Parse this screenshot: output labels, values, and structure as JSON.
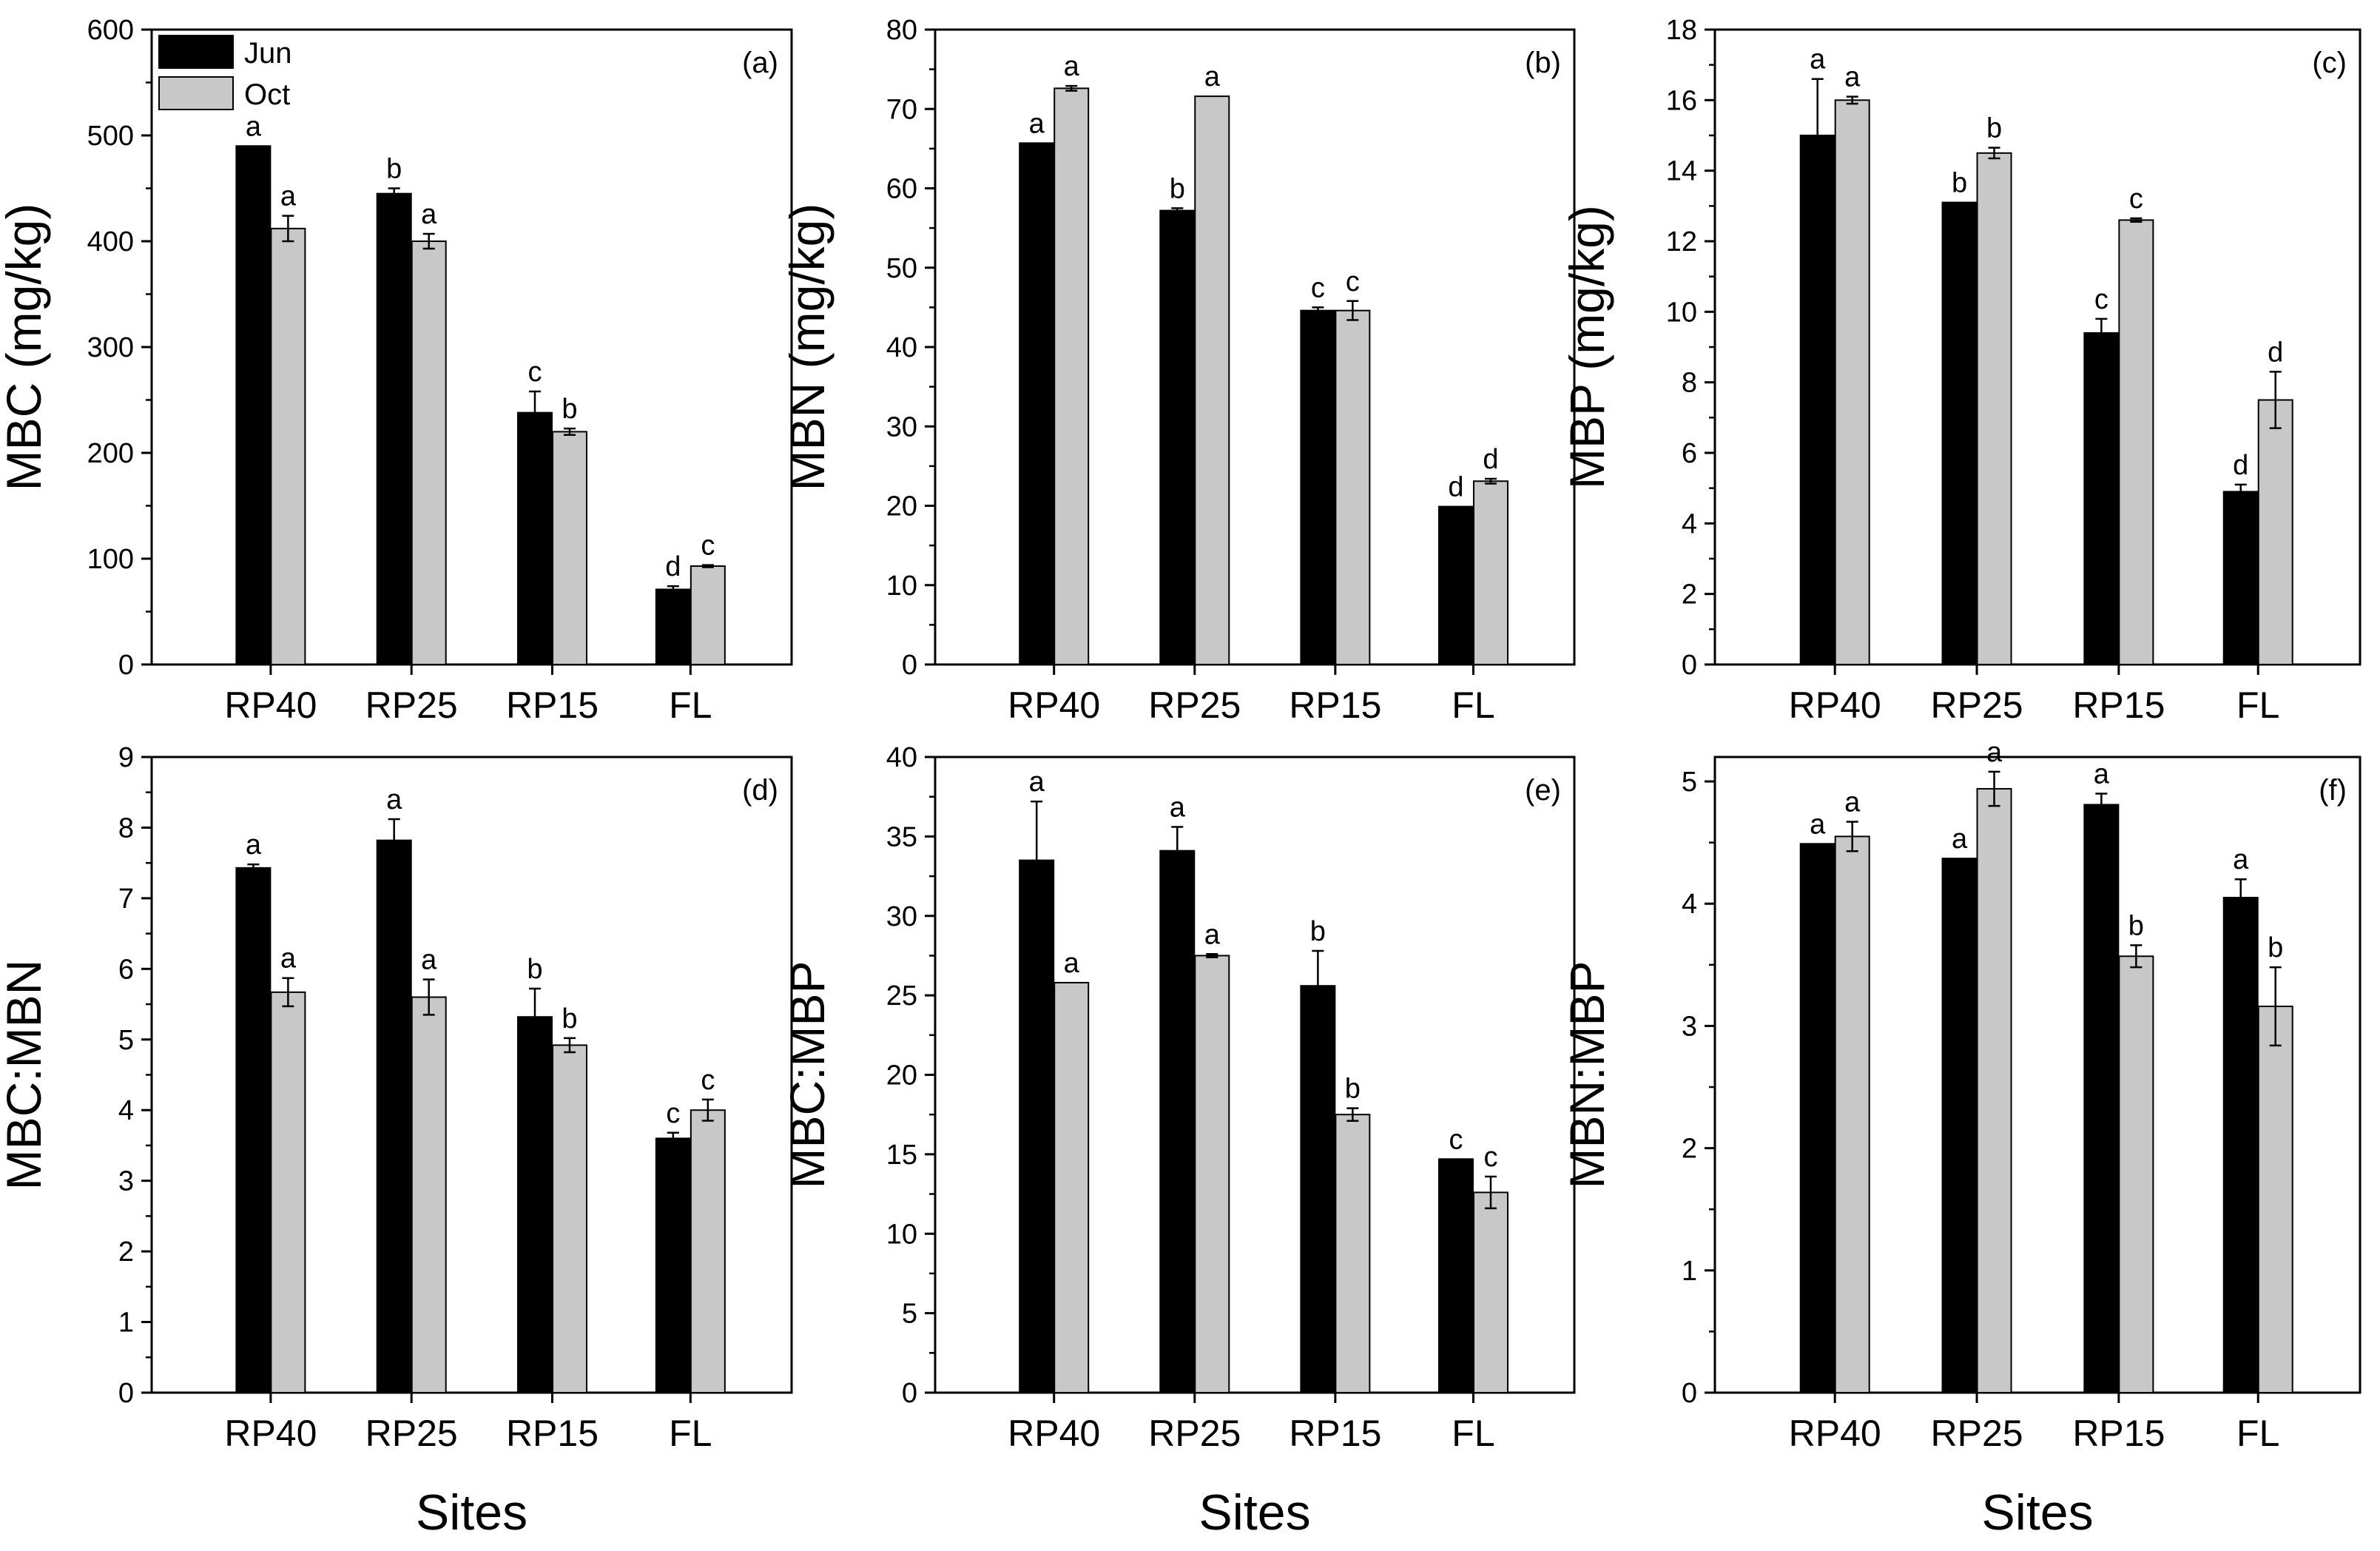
{
  "chart_data": [
    {
      "type": "bar",
      "panel_label": "(a)",
      "ylabel": "MBC (mg/kg)",
      "xlabel": "",
      "ylim": [
        0,
        600
      ],
      "yticks": [
        0,
        100,
        200,
        300,
        400,
        500,
        600
      ],
      "tick_labels_y": [
        "0",
        "100",
        "200",
        "300",
        "400",
        "500",
        "600"
      ],
      "categories": [
        "RP40",
        "RP25",
        "RP15",
        "FL"
      ],
      "legend": {
        "position": "top-left",
        "entries": [
          "Jun",
          "Oct"
        ]
      },
      "series": [
        {
          "name": "Jun",
          "color": "#000000",
          "values": [
            490,
            445,
            238,
            71
          ],
          "errors": [
            0,
            5,
            20,
            3
          ],
          "letters": [
            "a",
            "b",
            "c",
            "d"
          ]
        },
        {
          "name": "Oct",
          "color": "#c8c8c8",
          "values": [
            412,
            400,
            220,
            93
          ],
          "errors": [
            12,
            7,
            3,
            1
          ],
          "letters": [
            "a",
            "a",
            "b",
            "c"
          ]
        }
      ]
    },
    {
      "type": "bar",
      "panel_label": "(b)",
      "ylabel": "MBN (mg/kg)",
      "xlabel": "",
      "ylim": [
        0,
        80
      ],
      "yticks": [
        0,
        10,
        20,
        30,
        40,
        50,
        60,
        70,
        80
      ],
      "tick_labels_y": [
        "0",
        "10",
        "20",
        "30",
        "40",
        "50",
        "60",
        "70",
        "80"
      ],
      "categories": [
        "RP40",
        "RP25",
        "RP15",
        "FL"
      ],
      "series": [
        {
          "name": "Jun",
          "color": "#000000",
          "values": [
            65.7,
            57.2,
            44.6,
            19.9
          ],
          "errors": [
            0,
            0.3,
            0.4,
            0
          ],
          "letters": [
            "a",
            "b",
            "c",
            "d"
          ]
        },
        {
          "name": "Oct",
          "color": "#c8c8c8",
          "values": [
            72.6,
            71.6,
            44.6,
            23.1
          ],
          "errors": [
            0.3,
            0,
            1.2,
            0.3
          ],
          "letters": [
            "a",
            "a",
            "c",
            "d"
          ]
        }
      ]
    },
    {
      "type": "bar",
      "panel_label": "(c)",
      "ylabel": "MBP (mg/kg)",
      "xlabel": "",
      "ylim": [
        0,
        18
      ],
      "yticks": [
        0,
        2,
        4,
        6,
        8,
        10,
        12,
        14,
        16,
        18
      ],
      "tick_labels_y": [
        "0",
        "2",
        "4",
        "6",
        "8",
        "10",
        "12",
        "14",
        "16",
        "18"
      ],
      "categories": [
        "RP40",
        "RP25",
        "RP15",
        "FL"
      ],
      "series": [
        {
          "name": "Jun",
          "color": "#000000",
          "values": [
            15.0,
            13.1,
            9.4,
            4.9
          ],
          "errors": [
            1.6,
            0,
            0.4,
            0.2
          ],
          "letters": [
            "a",
            "b",
            "c",
            "d"
          ]
        },
        {
          "name": "Oct",
          "color": "#c8c8c8",
          "values": [
            16.0,
            14.5,
            12.6,
            7.5
          ],
          "errors": [
            0.1,
            0.15,
            0.05,
            0.8
          ],
          "letters": [
            "a",
            "b",
            "c",
            "d"
          ]
        }
      ]
    },
    {
      "type": "bar",
      "panel_label": "(d)",
      "ylabel": "MBC:MBN",
      "xlabel": "Sites",
      "ylim": [
        0,
        9
      ],
      "yticks": [
        0,
        1,
        2,
        3,
        4,
        5,
        6,
        7,
        8,
        9
      ],
      "tick_labels_y": [
        "0",
        "1",
        "2",
        "3",
        "4",
        "5",
        "6",
        "7",
        "8",
        "9"
      ],
      "categories": [
        "RP40",
        "RP25",
        "RP15",
        "FL"
      ],
      "series": [
        {
          "name": "Jun",
          "color": "#000000",
          "values": [
            7.43,
            7.82,
            5.32,
            3.6
          ],
          "errors": [
            0.05,
            0.3,
            0.4,
            0.08
          ],
          "letters": [
            "a",
            "a",
            "b",
            "c"
          ]
        },
        {
          "name": "Oct",
          "color": "#c8c8c8",
          "values": [
            5.67,
            5.6,
            4.92,
            4.0
          ],
          "errors": [
            0.2,
            0.25,
            0.1,
            0.15
          ],
          "letters": [
            "a",
            "a",
            "b",
            "c"
          ]
        }
      ]
    },
    {
      "type": "bar",
      "panel_label": "(e)",
      "ylabel": "MBC:MBP",
      "xlabel": "Sites",
      "ylim": [
        0,
        40
      ],
      "yticks": [
        0,
        5,
        10,
        15,
        20,
        25,
        30,
        35,
        40
      ],
      "tick_labels_y": [
        "0",
        "5",
        "10",
        "15",
        "20",
        "25",
        "30",
        "35",
        "40"
      ],
      "categories": [
        "RP40",
        "RP25",
        "RP15",
        "FL"
      ],
      "series": [
        {
          "name": "Jun",
          "color": "#000000",
          "values": [
            33.5,
            34.1,
            25.6,
            14.7
          ],
          "errors": [
            3.7,
            1.5,
            2.2,
            0
          ],
          "letters": [
            "a",
            "a",
            "b",
            "c"
          ]
        },
        {
          "name": "Oct",
          "color": "#c8c8c8",
          "values": [
            25.8,
            27.5,
            17.5,
            12.6
          ],
          "errors": [
            0,
            0.1,
            0.4,
            1.0
          ],
          "letters": [
            "a",
            "a",
            "b",
            "c"
          ]
        }
      ]
    },
    {
      "type": "bar",
      "panel_label": "(f)",
      "ylabel": "MBN:MBP",
      "xlabel": "Sites",
      "ylim": [
        0,
        5.2
      ],
      "yticks": [
        0,
        1,
        2,
        3,
        4,
        5
      ],
      "tick_labels_y": [
        "0",
        "1",
        "2",
        "3",
        "4",
        "5"
      ],
      "categories": [
        "RP40",
        "RP25",
        "RP15",
        "FL"
      ],
      "series": [
        {
          "name": "Jun",
          "color": "#000000",
          "values": [
            4.49,
            4.37,
            4.81,
            4.05
          ],
          "errors": [
            0,
            0,
            0.09,
            0.15
          ],
          "letters": [
            "a",
            "a",
            "a",
            "a"
          ]
        },
        {
          "name": "Oct",
          "color": "#c8c8c8",
          "values": [
            4.55,
            4.94,
            3.57,
            3.16
          ],
          "errors": [
            0.12,
            0.14,
            0.09,
            0.32
          ],
          "letters": [
            "a",
            "a",
            "b",
            "b"
          ]
        }
      ]
    }
  ]
}
